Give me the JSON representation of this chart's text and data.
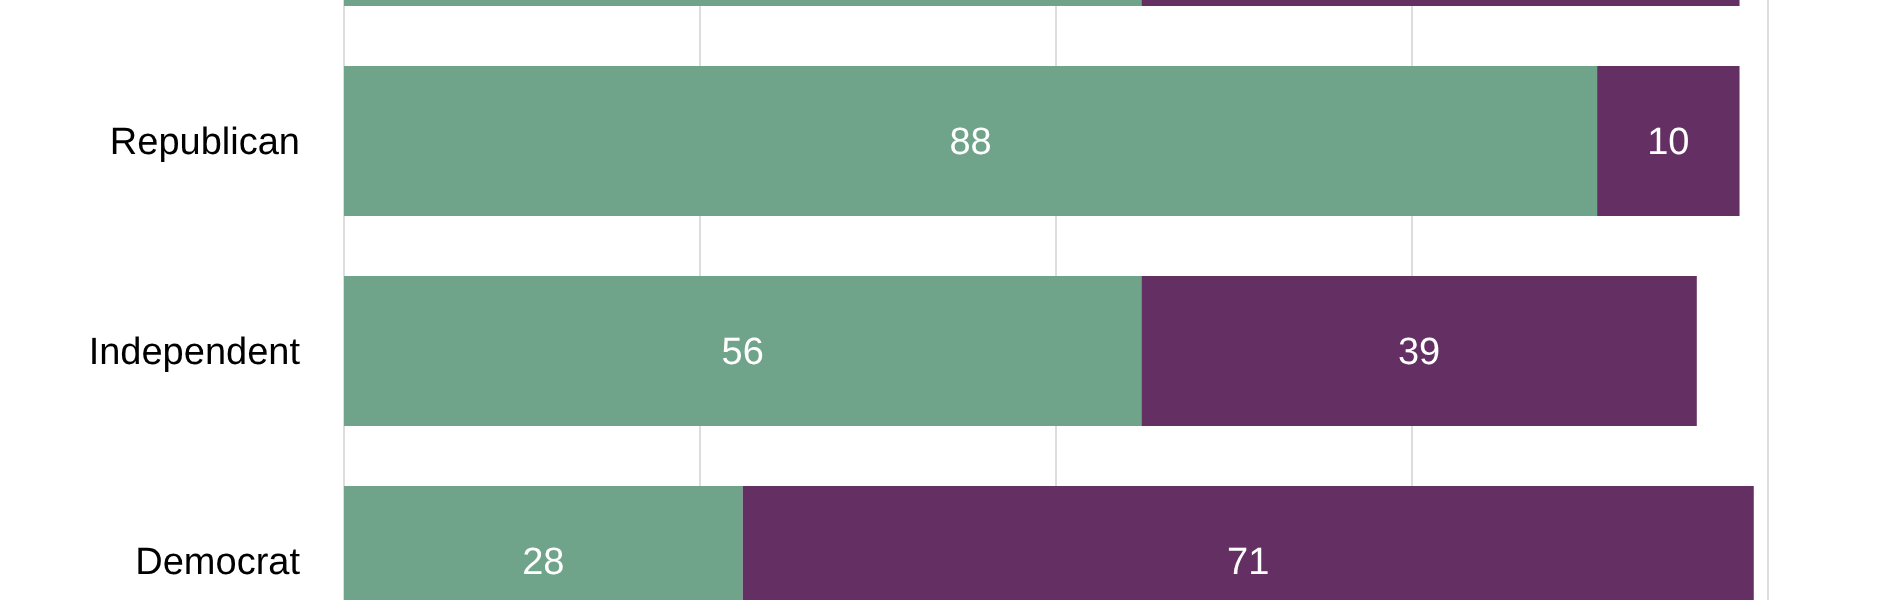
{
  "chart_data": {
    "type": "bar",
    "orientation": "horizontal",
    "stacked": true,
    "categories": [
      null,
      "Republican",
      "Independent",
      "Democrat"
    ],
    "series": [
      {
        "color": "#6fa48a",
        "values": [
          56,
          88,
          56,
          28
        ],
        "value_labels": [
          null,
          "88",
          "56",
          "28"
        ]
      },
      {
        "color": "#642f62",
        "values": [
          42,
          10,
          39,
          71
        ],
        "value_labels": [
          null,
          "10",
          "39",
          "71"
        ]
      }
    ],
    "xlim": [
      0,
      100
    ],
    "xticks": [
      {
        "value": 0,
        "label": null
      },
      {
        "value": 25,
        "label": null
      },
      {
        "value": 50,
        "label": null
      },
      {
        "value": 75,
        "label": null
      },
      {
        "value": 100,
        "label": null
      }
    ],
    "grid": "x",
    "tick_labels": "y"
  }
}
